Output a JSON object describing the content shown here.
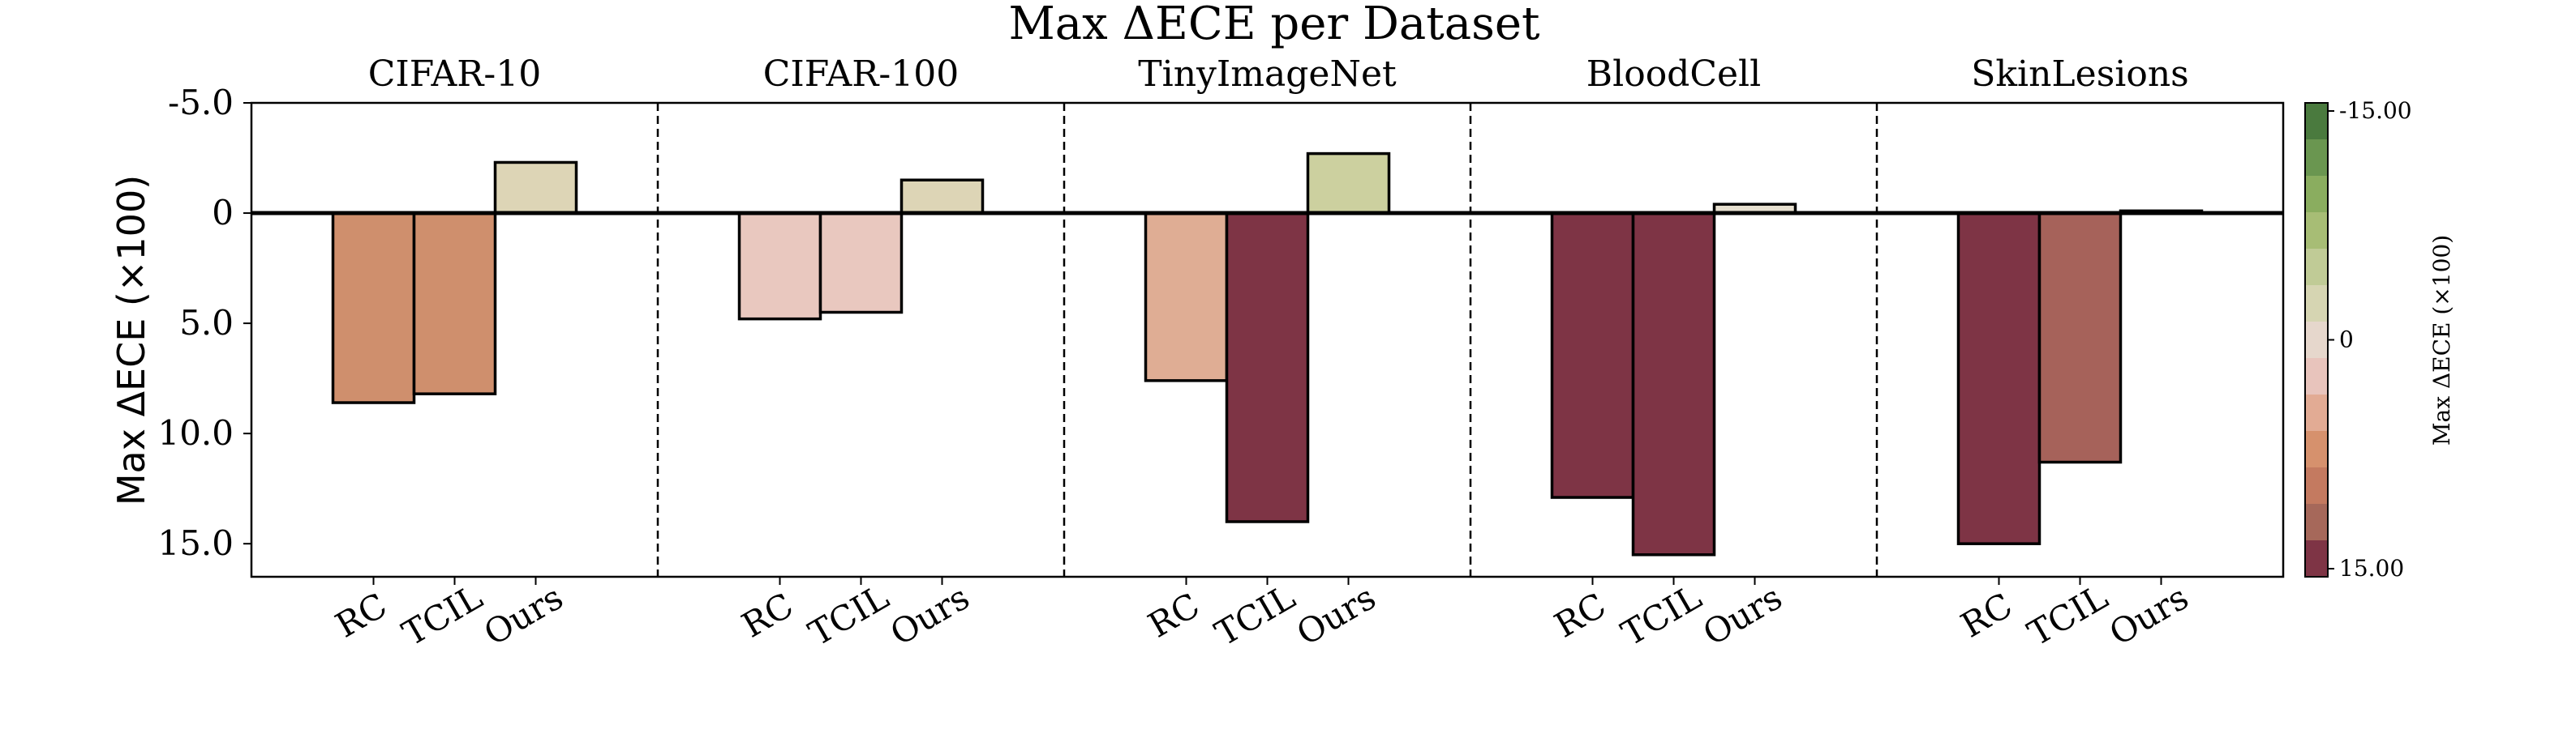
{
  "chart_data": {
    "type": "bar",
    "title": "Max ΔECE per Dataset",
    "ylabel": "Max ΔECE (×100)",
    "ylim": [
      16.5,
      -5.0
    ],
    "y_inverted": true,
    "yticks": [
      -5.0,
      0,
      5.0,
      10.0,
      15.0
    ],
    "ytick_labels": [
      "-5.0",
      "0",
      "5.0",
      "10.0",
      "15.0"
    ],
    "methods": [
      "RC",
      "TCIL",
      "Ours"
    ],
    "datasets": [
      {
        "name": "CIFAR-10",
        "values": [
          8.6,
          8.2,
          -2.3
        ]
      },
      {
        "name": "CIFAR-100",
        "values": [
          4.8,
          4.5,
          -1.5
        ]
      },
      {
        "name": "TinyImageNet",
        "values": [
          7.6,
          14.0,
          -2.7
        ]
      },
      {
        "name": "BloodCell",
        "values": [
          12.9,
          15.5,
          -0.4
        ]
      },
      {
        "name": "SkinLesions",
        "values": [
          15.0,
          11.3,
          -0.1
        ]
      }
    ],
    "colorbar": {
      "label": "Max ΔECE (×100)",
      "range": [
        -15.0,
        15.0
      ],
      "tick_labels": [
        "-15.00",
        "0",
        "15.00"
      ],
      "colors": [
        "#4a7a3e",
        "#6a9650",
        "#8aad5f",
        "#a7bd75",
        "#c0cb96",
        "#d6d5b2",
        "#e6d7cc",
        "#e8c4bc",
        "#e2ab94",
        "#d6916d",
        "#c47a60",
        "#a6685a",
        "#7e3445"
      ]
    },
    "bar_colors": {
      "CIFAR-10": [
        "#cf8f6d",
        "#cf8f6d",
        "#ddd5b6"
      ],
      "CIFAR-100": [
        "#e9c8bf",
        "#e9c8bf",
        "#ddd5b6"
      ],
      "TinyImageNet": [
        "#dfad94",
        "#7e3445",
        "#ccd09f"
      ],
      "BloodCell": [
        "#7e3445",
        "#7e3445",
        "#e6dfcf"
      ],
      "SkinLesions": [
        "#7e3445",
        "#a6625a",
        "#e6dfcf"
      ]
    }
  }
}
